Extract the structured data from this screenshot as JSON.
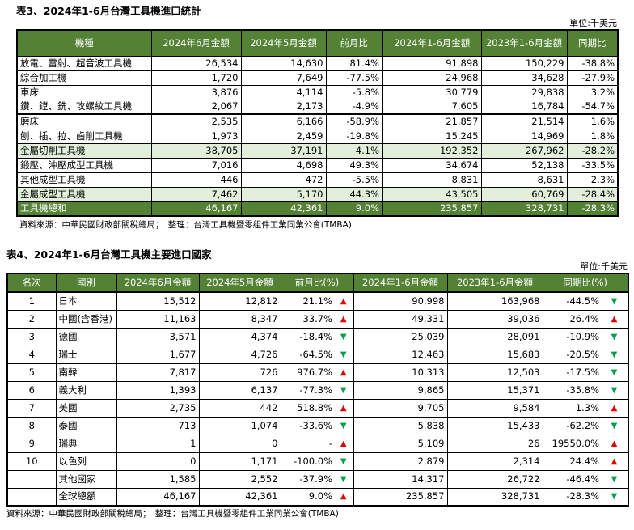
{
  "table3": {
    "title": "表3、2024年1-6月台灣工具機進口統計",
    "unit": "單位:千美元",
    "headers": [
      "機種",
      "2024年6月金額",
      "2024年5月金額",
      "前月比",
      "2024年1-6月金額",
      "2023年1-6月金額",
      "同期比"
    ],
    "rows": [
      [
        "放電、雷射、超音波工具機",
        "26,534",
        "14,630",
        "81.4%",
        "91,898",
        "150,229",
        "-38.8%"
      ],
      [
        "綜合加工機",
        "1,720",
        "7,649",
        "-77.5%",
        "24,968",
        "34,628",
        "-27.9%"
      ],
      [
        "車床",
        "3,876",
        "4,114",
        "-5.8%",
        "30,779",
        "29,838",
        "3.2%"
      ],
      [
        "鑽、鏜、銑、攻螺紋工具機",
        "2,067",
        "2,173",
        "-4.9%",
        "7,605",
        "16,784",
        "-54.7%"
      ],
      [
        "磨床",
        "2,535",
        "6,166",
        "-58.9%",
        "21,857",
        "21,514",
        "1.6%"
      ],
      [
        "刨、插、拉、齒削工具機",
        "1,973",
        "2,459",
        "-19.8%",
        "15,245",
        "14,969",
        "1.8%"
      ],
      [
        "金屬切削工具機",
        "38,705",
        "37,191",
        "4.1%",
        "192,352",
        "267,962",
        "-28.2%"
      ],
      [
        "鍛壓、沖壓成型工具機",
        "7,016",
        "4,698",
        "49.3%",
        "34,674",
        "52,138",
        "-33.5%"
      ],
      [
        "其他成型工具機",
        "446",
        "472",
        "-5.5%",
        "8,831",
        "8,631",
        "2.3%"
      ],
      [
        "金屬成型工具機",
        "7,462",
        "5,170",
        "44.3%",
        "43,505",
        "60,769",
        "-28.4%"
      ],
      [
        "工具機總和",
        "46,167",
        "42,361",
        "9.0%",
        "235,857",
        "328,731",
        "-28.3%"
      ]
    ],
    "source": "資料來源：中華民國財政部關稅總局；　整理：台灣工具機暨零組件工業同業公會(TMBA)"
  },
  "table4": {
    "title": "表4、2024年1-6月台灣工具機主要進口國家",
    "unit": "單位:千美元",
    "headers": [
      "名次",
      "國別",
      "2024年6月金額",
      "2024年5月金額",
      "前月比(%)",
      "2024年1-6月金額",
      "2023年1-6月金額",
      "同期比(%)"
    ],
    "rows": [
      {
        "rank": "1",
        "country": "日本",
        "jun": "15,512",
        "may": "12,812",
        "mom": "21.1%",
        "mom_dir": "up",
        "h1_24": "90,998",
        "h1_23": "163,968",
        "yoy": "-44.5%",
        "yoy_dir": "down"
      },
      {
        "rank": "2",
        "country": "中國(含香港)",
        "jun": "11,163",
        "may": "8,347",
        "mom": "33.7%",
        "mom_dir": "up",
        "h1_24": "49,331",
        "h1_23": "39,036",
        "yoy": "26.4%",
        "yoy_dir": "up"
      },
      {
        "rank": "3",
        "country": "德國",
        "jun": "3,571",
        "may": "4,374",
        "mom": "-18.4%",
        "mom_dir": "down",
        "h1_24": "25,039",
        "h1_23": "28,091",
        "yoy": "-10.9%",
        "yoy_dir": "down"
      },
      {
        "rank": "4",
        "country": "瑞士",
        "jun": "1,677",
        "may": "4,726",
        "mom": "-64.5%",
        "mom_dir": "down",
        "h1_24": "12,463",
        "h1_23": "15,683",
        "yoy": "-20.5%",
        "yoy_dir": "down"
      },
      {
        "rank": "5",
        "country": "南韓",
        "jun": "7,817",
        "may": "726",
        "mom": "976.7%",
        "mom_dir": "up",
        "h1_24": "10,313",
        "h1_23": "12,503",
        "yoy": "-17.5%",
        "yoy_dir": "down"
      },
      {
        "rank": "6",
        "country": "義大利",
        "jun": "1,393",
        "may": "6,137",
        "mom": "-77.3%",
        "mom_dir": "down",
        "h1_24": "9,865",
        "h1_23": "15,371",
        "yoy": "-35.8%",
        "yoy_dir": "down"
      },
      {
        "rank": "7",
        "country": "美國",
        "jun": "2,735",
        "may": "442",
        "mom": "518.8%",
        "mom_dir": "up",
        "h1_24": "9,705",
        "h1_23": "9,584",
        "yoy": "1.3%",
        "yoy_dir": "up"
      },
      {
        "rank": "8",
        "country": "泰國",
        "jun": "713",
        "may": "1,074",
        "mom": "-33.6%",
        "mom_dir": "down",
        "h1_24": "5,838",
        "h1_23": "15,433",
        "yoy": "-62.2%",
        "yoy_dir": "down"
      },
      {
        "rank": "9",
        "country": "瑞典",
        "jun": "1",
        "may": "0",
        "mom": "-",
        "mom_dir": "up",
        "h1_24": "5,109",
        "h1_23": "26",
        "yoy": "19550.0%",
        "yoy_dir": "up"
      },
      {
        "rank": "10",
        "country": "以色列",
        "jun": "0",
        "may": "1,171",
        "mom": "-100.0%",
        "mom_dir": "down",
        "h1_24": "2,879",
        "h1_23": "2,314",
        "yoy": "24.4%",
        "yoy_dir": "up"
      },
      {
        "rank": "",
        "country": "其他國家",
        "jun": "1,585",
        "may": "2,552",
        "mom": "-37.9%",
        "mom_dir": "down",
        "h1_24": "14,317",
        "h1_23": "26,722",
        "yoy": "-46.4%",
        "yoy_dir": "down"
      },
      {
        "rank": "",
        "country": "全球總額",
        "jun": "46,167",
        "may": "42,361",
        "mom": "9.0%",
        "mom_dir": "up",
        "h1_24": "235,857",
        "h1_23": "328,731",
        "yoy": "-28.3%",
        "yoy_dir": "down"
      }
    ],
    "source": "資料來源：中華民國財政部關稅總局；　整理：台灣工具機暨零組件工業同業公會(TMBA)"
  },
  "colors": {
    "header_green": "#548235",
    "subtotal_green": "#e2efda",
    "up_arrow": "#e00000",
    "down_arrow": "#00a04a"
  }
}
